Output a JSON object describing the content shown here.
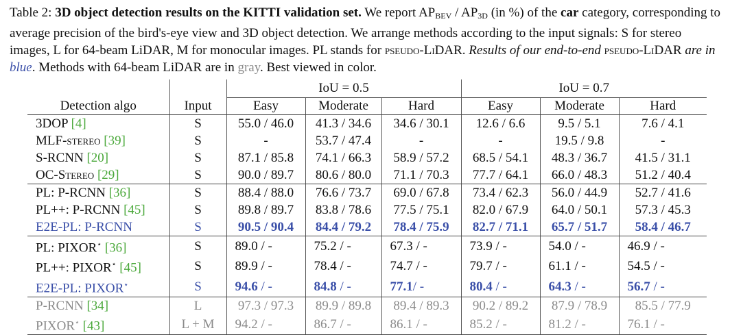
{
  "caption": {
    "label": "Table 2:",
    "title": "3D object detection results on the KITTI validation set.",
    "t1": "We report AP",
    "sub_bev": "BEV",
    "t2": " / AP",
    "sub_3d": "3D",
    "t3": " (in %) of the ",
    "car": "car",
    "t4": " category, corresponding to average precision of the bird's-eye view and 3D object detection. We arrange methods according to the input signals: S for stereo images, L for 64-beam LiDAR, M for monocular images. PL stands for ",
    "pl_sc": "pseudo-LiDAR",
    "t5": ". ",
    "italic1": "Results of our end-to-end ",
    "pl_sc2": "pseudo-LiDAR",
    "italic2": " are in ",
    "blue_word": "blue",
    "t6": ".",
    "t7": " Methods with 64-beam LiDAR are in ",
    "gray_word": "gray",
    "t8": ". Best viewed in color."
  },
  "colors": {
    "blue": "#3a4fa8",
    "gray": "#8a8a8a",
    "ref": "#4aa83a"
  },
  "table": {
    "col_algo": "Detection algo",
    "col_input": "Input",
    "iou_groups": [
      "IoU = 0.5",
      "IoU = 0.7"
    ],
    "difficulties": [
      "Easy",
      "Moderate",
      "Hard",
      "Easy",
      "Moderate",
      "Hard"
    ],
    "rows": [
      {
        "group": 0,
        "style": "",
        "algo": "3DOP ",
        "ref": "[4]",
        "input": "S",
        "cells": [
          [
            "",
            "55.0 / 46.0"
          ],
          [
            "",
            "41.3 / 34.6"
          ],
          [
            "",
            "34.6 / 30.1"
          ],
          [
            "",
            "12.6 / 6.6"
          ],
          [
            "",
            "9.5 / 5.1"
          ],
          [
            "",
            "7.6 / 4.1"
          ]
        ]
      },
      {
        "group": 0,
        "style": "",
        "algo": "MLF-",
        "algo_sc": "stereo",
        "ref": " [39]",
        "input": "S",
        "cells": [
          [
            "",
            "-"
          ],
          [
            "",
            "53.7 / 47.4"
          ],
          [
            "",
            "-"
          ],
          [
            "",
            "-"
          ],
          [
            "",
            "19.5 / 9.8"
          ],
          [
            "",
            "-"
          ]
        ]
      },
      {
        "group": 0,
        "style": "",
        "algo": "S-RCNN ",
        "ref": "[20]",
        "input": "S",
        "cells": [
          [
            "",
            "87.1 / 85.8"
          ],
          [
            "",
            "74.1 / 66.3"
          ],
          [
            "",
            "58.9 / 57.2"
          ],
          [
            "",
            "68.5 / 54.1"
          ],
          [
            "",
            "48.3 / 36.7"
          ],
          [
            "",
            "41.5 / 31.1"
          ]
        ]
      },
      {
        "group": 0,
        "style": "",
        "algo": "OC-",
        "algo_sc": "Stereo",
        "ref": " [29]",
        "input": "S",
        "cells": [
          [
            "",
            "90.0 / 89.7"
          ],
          [
            "",
            "80.6 / 80.0"
          ],
          [
            "",
            "71.1 / 70.3"
          ],
          [
            "",
            "77.7 / 64.1"
          ],
          [
            "",
            "66.0 / 48.3"
          ],
          [
            "",
            "51.2 / 40.4"
          ]
        ]
      },
      {
        "group": 1,
        "style": "",
        "algo": "PL: P-RCNN ",
        "ref": "[36]",
        "input": "S",
        "cells": [
          [
            "",
            "88.4 / 88.0"
          ],
          [
            "",
            "76.6 / 73.7"
          ],
          [
            "",
            "69.0 / 67.8"
          ],
          [
            "",
            "73.4 / 62.3"
          ],
          [
            "",
            "56.0 / 44.9"
          ],
          [
            "",
            "52.7 / 41.6"
          ]
        ]
      },
      {
        "group": 1,
        "style": "",
        "algo": "PL++: P-RCNN ",
        "ref": "[45]",
        "input": "S",
        "cells": [
          [
            "",
            "89.8 / 89.7"
          ],
          [
            "",
            "83.8 / 78.6"
          ],
          [
            "",
            "77.5 / 75.1"
          ],
          [
            "",
            "82.0 / 67.9"
          ],
          [
            "",
            "64.0 / 50.1"
          ],
          [
            "",
            "57.3 / 45.3"
          ]
        ]
      },
      {
        "group": 1,
        "style": "blue",
        "algo": "E2E-PL: P-RCNN",
        "input": "S",
        "cells": [
          [
            "90.5 / 90.4",
            ""
          ],
          [
            "84.4 / 79.2",
            ""
          ],
          [
            "78.4 / 75.9",
            ""
          ],
          [
            "82.7 / 71.1",
            ""
          ],
          [
            "65.7 / 51.7",
            ""
          ],
          [
            "58.4 / 46.7",
            ""
          ]
        ]
      },
      {
        "group": 2,
        "style": "",
        "left": true,
        "algo": "PL: PIXOR",
        "sup": "⋆",
        "ref": " [36]",
        "input": "S",
        "cells": [
          [
            "",
            "89.0 / -"
          ],
          [
            "",
            "75.2 / -"
          ],
          [
            "",
            "67.3 / -"
          ],
          [
            "",
            "73.9 / -"
          ],
          [
            "",
            "54.0 / -"
          ],
          [
            "",
            "46.9 / -"
          ]
        ]
      },
      {
        "group": 2,
        "style": "",
        "left": true,
        "algo": "PL++: PIXOR",
        "sup": "⋆",
        "ref": " [45]",
        "input": "S",
        "cells": [
          [
            "",
            "89.9 / -"
          ],
          [
            "",
            "78.4 / -"
          ],
          [
            "",
            "74.7 / -"
          ],
          [
            "",
            "79.7 / -"
          ],
          [
            "",
            "61.1 / -"
          ],
          [
            "",
            "54.5 / -"
          ]
        ]
      },
      {
        "group": 2,
        "style": "blue",
        "left": true,
        "algo": "E2E-PL: PIXOR",
        "sup": "⋆",
        "input": "S",
        "cells": [
          [
            "94.6",
            " / -"
          ],
          [
            "84.8",
            " / -"
          ],
          [
            "77.1",
            "/ -"
          ],
          [
            "80.4",
            " / -"
          ],
          [
            "64.3",
            " / -"
          ],
          [
            "56.7",
            " / -"
          ]
        ]
      },
      {
        "group": 3,
        "style": "gray",
        "algo": "P-RCNN ",
        "ref": "[34]",
        "input": "L",
        "cells": [
          [
            "",
            "97.3 / 97.3"
          ],
          [
            "",
            "89.9 / 89.8"
          ],
          [
            "",
            "89.4 / 89.3"
          ],
          [
            "",
            "90.2 / 89.2"
          ],
          [
            "",
            "87.9 / 78.9"
          ],
          [
            "",
            "85.5 / 77.9"
          ]
        ]
      },
      {
        "group": 3,
        "style": "gray",
        "left": true,
        "algo": "PIXOR",
        "sup": "⋆",
        "ref": " [43]",
        "input": "L + M",
        "cells": [
          [
            "",
            "94.2 / -"
          ],
          [
            "",
            "86.7 / -"
          ],
          [
            "",
            "86.1 / -"
          ],
          [
            "",
            "85.2 / -"
          ],
          [
            "",
            "81.2 / -"
          ],
          [
            "",
            "76.1 / -"
          ]
        ]
      }
    ]
  }
}
